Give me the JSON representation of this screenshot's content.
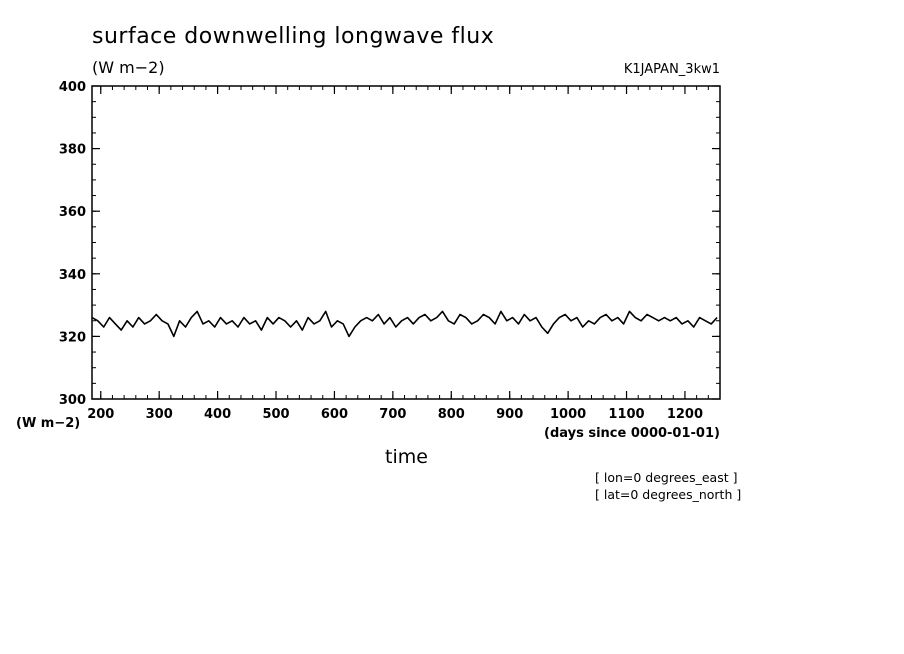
{
  "chart_data": {
    "type": "line",
    "title": "surface downwelling longwave flux",
    "units_label": "(W m−2)",
    "run_id": "K1JAPAN_3kw1",
    "ylabel": "(W m−2)",
    "xlabel": "time",
    "xunits": "(days since 0000-01-01)",
    "notes": [
      "[ lon=0 degrees_east ]",
      "[ lat=0 degrees_north ]"
    ],
    "xlim": [
      185,
      1260
    ],
    "ylim": [
      300,
      400
    ],
    "xticks": [
      200,
      300,
      400,
      500,
      600,
      700,
      800,
      900,
      1000,
      1100,
      1200
    ],
    "yticks": [
      300,
      320,
      340,
      360,
      380,
      400
    ],
    "line_color": "#000000",
    "series": [
      {
        "x": [
          185,
          195,
          205,
          215,
          225,
          235,
          245,
          255,
          265,
          275,
          285,
          295,
          305,
          315,
          325,
          335,
          345,
          355,
          365,
          375,
          385,
          395,
          405,
          415,
          425,
          435,
          445,
          455,
          465,
          475,
          485,
          495,
          505,
          515,
          525,
          535,
          545,
          555,
          565,
          575,
          585,
          595,
          605,
          615,
          625,
          635,
          645,
          655,
          665,
          675,
          685,
          695,
          705,
          715,
          725,
          735,
          745,
          755,
          765,
          775,
          785,
          795,
          805,
          815,
          825,
          835,
          845,
          855,
          865,
          875,
          885,
          895,
          905,
          915,
          925,
          935,
          945,
          955,
          965,
          975,
          985,
          995,
          1005,
          1015,
          1025,
          1035,
          1045,
          1055,
          1065,
          1075,
          1085,
          1095,
          1105,
          1115,
          1125,
          1135,
          1145,
          1155,
          1165,
          1175,
          1185,
          1195,
          1205,
          1215,
          1225,
          1235,
          1245,
          1255
        ],
        "y": [
          326,
          325,
          323,
          326,
          324,
          322,
          325,
          323,
          326,
          324,
          325,
          327,
          325,
          324,
          320,
          325,
          323,
          326,
          328,
          324,
          325,
          323,
          326,
          324,
          325,
          323,
          326,
          324,
          325,
          322,
          326,
          324,
          326,
          325,
          323,
          325,
          322,
          326,
          324,
          325,
          328,
          323,
          325,
          324,
          320,
          323,
          325,
          326,
          325,
          327,
          324,
          326,
          323,
          325,
          326,
          324,
          326,
          327,
          325,
          326,
          328,
          325,
          324,
          327,
          326,
          324,
          325,
          327,
          326,
          324,
          328,
          325,
          326,
          324,
          327,
          325,
          326,
          323,
          321,
          324,
          326,
          327,
          325,
          326,
          323,
          325,
          324,
          326,
          327,
          325,
          326,
          324,
          328,
          326,
          325,
          327,
          326,
          325,
          326,
          325,
          326,
          324,
          325,
          323,
          326,
          325,
          324,
          326
        ]
      }
    ]
  }
}
